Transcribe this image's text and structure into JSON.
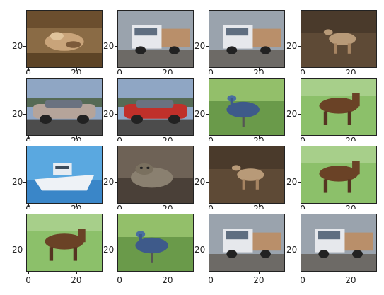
{
  "figure": {
    "rows": 4,
    "cols": 4,
    "x_ticks": [
      "0",
      "20"
    ],
    "y_ticks": [
      "20"
    ]
  },
  "panels": [
    {
      "subject": "frog",
      "show_xticks": false
    },
    {
      "subject": "truck",
      "show_xticks": false
    },
    {
      "subject": "truck",
      "show_xticks": false
    },
    {
      "subject": "deer",
      "show_xticks": false
    },
    {
      "subject": "automobile",
      "show_xticks": false
    },
    {
      "subject": "automobile",
      "show_xticks": false
    },
    {
      "subject": "bird",
      "show_xticks": false
    },
    {
      "subject": "horse",
      "show_xticks": false
    },
    {
      "subject": "ship",
      "show_xticks": false
    },
    {
      "subject": "cat",
      "show_xticks": false
    },
    {
      "subject": "deer",
      "show_xticks": false
    },
    {
      "subject": "horse",
      "show_xticks": false
    },
    {
      "subject": "horse",
      "show_xticks": true
    },
    {
      "subject": "bird",
      "show_xticks": true
    },
    {
      "subject": "truck",
      "show_xticks": true
    },
    {
      "subject": "truck",
      "show_xticks": true
    }
  ]
}
